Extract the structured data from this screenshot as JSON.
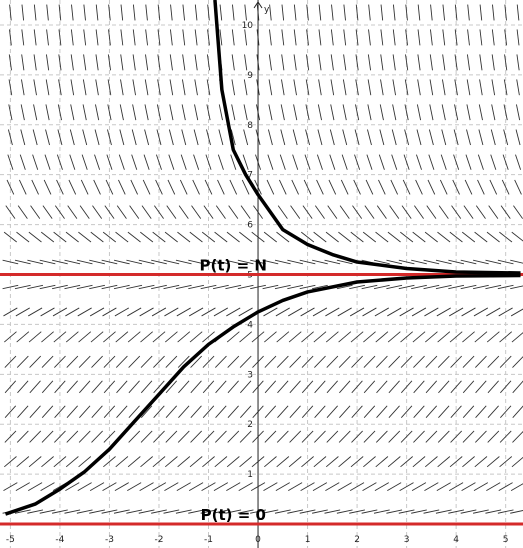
{
  "chart_data": {
    "type": "line",
    "axis_label_y": "y",
    "xlim": [
      -5.21,
      5.35
    ],
    "ylim": [
      -0.48,
      10.5
    ],
    "xticks": [
      -5,
      -4,
      -3,
      -2,
      -1,
      0,
      1,
      2,
      3,
      4,
      5
    ],
    "yticks": [
      1,
      2,
      3,
      4,
      5,
      6,
      7,
      8,
      9,
      10
    ],
    "grid": true,
    "slope_field": {
      "rate": 0.9,
      "capacity": 5,
      "x_step": 0.25,
      "y_step": 0.5
    },
    "reference_lines": [
      {
        "value": 5,
        "label": "P(t) = N",
        "color": "#d42a2a"
      },
      {
        "value": 0,
        "label": "P(t) = 0",
        "color": "#d42a2a"
      }
    ],
    "series": [
      {
        "color": "#000000",
        "x": [
          -0.87,
          -0.73,
          -0.5,
          -0.25,
          0,
          0.5,
          1,
          1.5,
          2,
          3,
          4,
          5.3
        ],
        "values": [
          10.5,
          8.7,
          7.5,
          7.0,
          6.6,
          5.9,
          5.6,
          5.4,
          5.25,
          5.12,
          5.05,
          5.03
        ]
      },
      {
        "color": "#000000",
        "x": [
          -5.1,
          -4.5,
          -4,
          -3.5,
          -3,
          -2.5,
          -2,
          -1.5,
          -1,
          -0.5,
          0,
          0.5,
          1,
          2,
          3,
          4,
          5.3
        ],
        "values": [
          0.2,
          0.4,
          0.7,
          1.05,
          1.5,
          2.05,
          2.6,
          3.15,
          3.6,
          3.95,
          4.25,
          4.48,
          4.65,
          4.85,
          4.93,
          4.97,
          4.98
        ]
      }
    ]
  }
}
